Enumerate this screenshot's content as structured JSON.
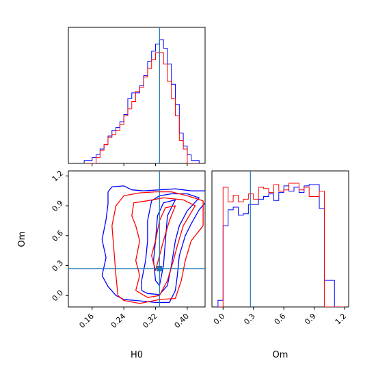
{
  "chart_data": {
    "type": "corner",
    "parameters": [
      "H0",
      "Om"
    ],
    "truth": {
      "H0": 0.33,
      "Om": 0.27
    },
    "colors": {
      "blue": "#0000ff",
      "red": "#ff0000",
      "truth": "#1f77b4"
    },
    "panels": [
      {
        "name": "H0-marginal",
        "type": "histogram",
        "param": "H0",
        "xlim": [
          0.1,
          0.445
        ],
        "bin_edges": [
          0.14,
          0.15,
          0.16,
          0.17,
          0.18,
          0.19,
          0.2,
          0.21,
          0.22,
          0.23,
          0.24,
          0.25,
          0.26,
          0.27,
          0.28,
          0.29,
          0.3,
          0.31,
          0.32,
          0.33,
          0.34,
          0.35,
          0.36,
          0.37,
          0.38,
          0.39,
          0.4,
          0.41,
          0.42,
          0.43
        ],
        "series": [
          {
            "color": "blue",
            "values": [
              2,
              2,
              4,
              6,
              10,
              13,
              19,
              23,
              25,
              29,
              34,
              45,
              49,
              49,
              54,
              61,
              71,
              78,
              83,
              86,
              80,
              69,
              55,
              41,
              21,
              12,
              6,
              2,
              2
            ]
          },
          {
            "color": "red",
            "values": [
              0,
              0,
              0,
              4,
              9,
              13,
              18,
              20,
              23,
              27,
              33,
              38,
              43,
              50,
              53,
              60,
              66,
              72,
              77,
              77,
              69,
              57,
              45,
              33,
              16,
              10,
              0,
              0,
              0
            ]
          }
        ]
      },
      {
        "name": "Om-H0-contours",
        "type": "contour",
        "x": "H0",
        "y": "Om",
        "xlim": [
          0.1,
          0.445
        ],
        "ylim": [
          -0.115,
          1.25
        ],
        "xticks": [
          0.16,
          0.24,
          0.32,
          0.4
        ],
        "yticks": [
          0.0,
          0.3,
          0.6,
          0.9,
          1.2
        ],
        "series": [
          {
            "color": "blue",
            "levels": [
              [
                [
                  0.2,
                  1.04
                ],
                [
                  0.2,
                  0.92
                ],
                [
                  0.195,
                  0.76
                ],
                [
                  0.185,
                  0.56
                ],
                [
                  0.195,
                  0.38
                ],
                [
                  0.185,
                  0.2
                ],
                [
                  0.2,
                  0.09
                ],
                [
                  0.22,
                  0.0
                ],
                [
                  0.24,
                  -0.04
                ],
                [
                  0.27,
                  -0.05
                ],
                [
                  0.32,
                  -0.07
                ],
                [
                  0.355,
                  -0.07
                ],
                [
                  0.37,
                  0.05
                ],
                [
                  0.375,
                  0.2
                ],
                [
                  0.38,
                  0.4
                ],
                [
                  0.395,
                  0.6
                ],
                [
                  0.41,
                  0.72
                ],
                [
                  0.43,
                  0.86
                ],
                [
                  0.445,
                  0.93
                ]
              ],
              [
                [
                  0.445,
                  1.05
                ],
                [
                  0.41,
                  1.05
                ],
                [
                  0.37,
                  1.07
                ],
                [
                  0.33,
                  1.06
                ],
                [
                  0.29,
                  1.05
                ],
                [
                  0.26,
                  1.06
                ],
                [
                  0.24,
                  1.1
                ],
                [
                  0.21,
                  1.09
                ],
                [
                  0.2,
                  1.04
                ]
              ],
              [
                [
                  0.285,
                  0.05
                ],
                [
                  0.3,
                  0.02
                ],
                [
                  0.33,
                  0.01
                ],
                [
                  0.35,
                  0.1
                ],
                [
                  0.36,
                  0.3
                ],
                [
                  0.37,
                  0.55
                ],
                [
                  0.38,
                  0.7
                ],
                [
                  0.4,
                  0.85
                ],
                [
                  0.43,
                  0.98
                ],
                [
                  0.4,
                  1.02
                ],
                [
                  0.36,
                  1.02
                ],
                [
                  0.33,
                  1.0
                ],
                [
                  0.31,
                  0.95
                ],
                [
                  0.3,
                  0.75
                ],
                [
                  0.3,
                  0.55
                ],
                [
                  0.295,
                  0.35
                ],
                [
                  0.285,
                  0.15
                ],
                [
                  0.285,
                  0.05
                ]
              ],
              [
                [
                  0.33,
                  0.1
                ],
                [
                  0.34,
                  0.3
                ],
                [
                  0.345,
                  0.55
                ],
                [
                  0.35,
                  0.8
                ],
                [
                  0.37,
                  0.96
                ],
                [
                  0.34,
                  0.93
                ],
                [
                  0.325,
                  0.8
                ],
                [
                  0.32,
                  0.55
                ],
                [
                  0.315,
                  0.35
                ],
                [
                  0.32,
                  0.15
                ],
                [
                  0.33,
                  0.1
                ]
              ]
            ]
          },
          {
            "color": "red",
            "levels": [
              [
                [
                  0.225,
                  0.0
                ],
                [
                  0.22,
                  0.2
                ],
                [
                  0.215,
                  0.45
                ],
                [
                  0.21,
                  0.7
                ],
                [
                  0.22,
                  0.9
                ],
                [
                  0.24,
                  1.0
                ],
                [
                  0.28,
                  1.03
                ],
                [
                  0.32,
                  1.04
                ],
                [
                  0.36,
                  1.04
                ],
                [
                  0.4,
                  1.0
                ],
                [
                  0.44,
                  0.95
                ],
                [
                  0.44,
                  0.7
                ],
                [
                  0.41,
                  0.55
                ],
                [
                  0.395,
                  0.35
                ],
                [
                  0.385,
                  0.15
                ],
                [
                  0.37,
                  -0.03
                ],
                [
                  0.33,
                  -0.04
                ],
                [
                  0.28,
                  -0.08
                ],
                [
                  0.24,
                  -0.05
                ],
                [
                  0.225,
                  0.0
                ]
              ],
              [
                [
                  0.27,
                  0.05
                ],
                [
                  0.3,
                  -0.02
                ],
                [
                  0.33,
                  0.0
                ],
                [
                  0.35,
                  0.15
                ],
                [
                  0.365,
                  0.35
                ],
                [
                  0.375,
                  0.5
                ],
                [
                  0.39,
                  0.7
                ],
                [
                  0.42,
                  0.9
                ],
                [
                  0.39,
                  0.96
                ],
                [
                  0.34,
                  0.98
                ],
                [
                  0.3,
                  0.95
                ],
                [
                  0.265,
                  0.93
                ],
                [
                  0.26,
                  0.8
                ],
                [
                  0.27,
                  0.7
                ],
                [
                  0.28,
                  0.55
                ],
                [
                  0.27,
                  0.35
                ],
                [
                  0.28,
                  0.2
                ],
                [
                  0.27,
                  0.05
                ]
              ],
              [
                [
                  0.32,
                  0.25
                ],
                [
                  0.33,
                  0.4
                ],
                [
                  0.34,
                  0.55
                ],
                [
                  0.355,
                  0.75
                ],
                [
                  0.37,
                  0.9
                ],
                [
                  0.345,
                  0.88
                ],
                [
                  0.33,
                  0.75
                ],
                [
                  0.32,
                  0.55
                ],
                [
                  0.31,
                  0.4
                ],
                [
                  0.32,
                  0.25
                ]
              ]
            ]
          }
        ]
      },
      {
        "name": "Om-marginal",
        "type": "histogram",
        "param": "Om",
        "xlim": [
          -0.11,
          1.24
        ],
        "xticks": [
          0.0,
          0.3,
          0.6,
          0.9,
          1.2
        ],
        "bin_edges": [
          -0.05,
          0.0,
          0.05,
          0.1,
          0.15,
          0.2,
          0.25,
          0.3,
          0.35,
          0.4,
          0.45,
          0.5,
          0.55,
          0.6,
          0.65,
          0.7,
          0.75,
          0.8,
          0.85,
          0.9,
          0.95,
          1.0,
          1.05,
          1.1,
          1.15,
          1.2
        ],
        "series": [
          {
            "color": "blue",
            "values": [
              5,
              61,
              73,
              75,
              69,
              70,
              77,
              77,
              81,
              83,
              85,
              80,
              86,
              91,
              87,
              90,
              86,
              91,
              92,
              92,
              74,
              20,
              20,
              0,
              0
            ]
          },
          {
            "color": "red",
            "values": [
              0,
              90,
              79,
              84,
              79,
              81,
              85,
              81,
              90,
              89,
              86,
              92,
              87,
              88,
              93,
              93,
              88,
              90,
              83,
              83,
              87,
              0,
              0,
              0,
              0
            ]
          }
        ]
      }
    ]
  }
}
